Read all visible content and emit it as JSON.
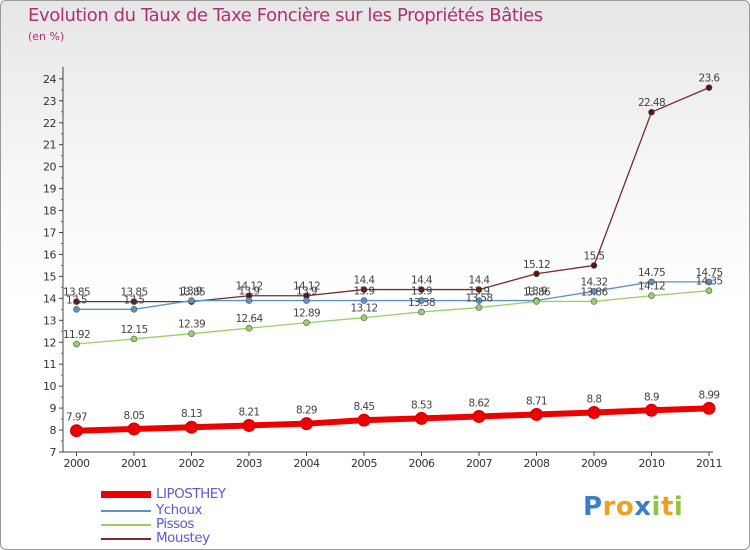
{
  "chart_data": {
    "type": "line",
    "title": "Evolution du Taux de Taxe Foncière sur les Propriétés Bâties",
    "unit_label": "(en %)",
    "ylim": [
      7,
      24.5
    ],
    "y_ticks": [
      "7",
      "8",
      "9",
      "10",
      "11",
      "12",
      "13",
      "14",
      "15",
      "16",
      "17",
      "18",
      "19",
      "20",
      "21",
      "22",
      "23",
      "24"
    ],
    "categories": [
      "2000",
      "2001",
      "2002",
      "2003",
      "2004",
      "2005",
      "2006",
      "2007",
      "2008",
      "2009",
      "2010",
      "2011"
    ],
    "series": [
      {
        "name": "LIPOSTHEY",
        "color": "#ee0000",
        "values": [
          7.97,
          8.05,
          8.13,
          8.21,
          8.29,
          8.45,
          8.53,
          8.62,
          8.71,
          8.8,
          8.9,
          8.99
        ],
        "labels": [
          "7.97",
          "8.05",
          "8.13",
          "8.21",
          "8.29",
          "8.45",
          "8.53",
          "8.62",
          "8.71",
          "8.8",
          "8.9",
          "8.99"
        ]
      },
      {
        "name": "Ychoux",
        "color": "#5b93c8",
        "values": [
          13.5,
          13.5,
          13.9,
          13.9,
          13.9,
          13.9,
          13.9,
          13.9,
          13.9,
          14.32,
          14.75,
          14.75
        ],
        "labels": [
          "13.5",
          "13.5",
          "13.9",
          "13.9",
          "13.9",
          "13.9",
          "13.9",
          "13.9",
          "13.9",
          "14.32",
          "14.75",
          "14.75"
        ]
      },
      {
        "name": "Pissos",
        "color": "#99d066",
        "values": [
          11.92,
          12.15,
          12.39,
          12.64,
          12.89,
          13.12,
          13.38,
          13.58,
          13.86,
          13.86,
          14.12,
          14.35
        ],
        "labels": [
          "11.92",
          "12.15",
          "12.39",
          "12.64",
          "12.89",
          "13.12",
          "13.38",
          "13.58",
          "13.86",
          "13.86",
          "14.12",
          "14.35"
        ]
      },
      {
        "name": "Moustey",
        "color": "#7a2a2a",
        "values": [
          13.85,
          13.85,
          13.85,
          14.12,
          14.12,
          14.4,
          14.4,
          14.4,
          15.12,
          15.5,
          22.48,
          23.6
        ],
        "labels": [
          "13.85",
          "13.85",
          "13.85",
          "14.12",
          "14.12",
          "14.4",
          "14.4",
          "14.4",
          "15.12",
          "15.5",
          "22.48",
          "23.6"
        ]
      }
    ]
  },
  "legend": [
    {
      "name": "LIPOSTHEY",
      "color": "#ee0000"
    },
    {
      "name": "Ychoux",
      "color": "#5b93c8"
    },
    {
      "name": "Pissos",
      "color": "#99d066"
    },
    {
      "name": "Moustey",
      "color": "#7a2a2a"
    }
  ],
  "logo": {
    "letters": [
      "P",
      "r",
      "o",
      "x",
      "i",
      "t",
      "i"
    ],
    "colors": [
      "#3b7fcb",
      "#f0a020",
      "#f0a020",
      "#3b7fcb",
      "#8cc63f",
      "#f0a020",
      "#8cc63f"
    ]
  }
}
